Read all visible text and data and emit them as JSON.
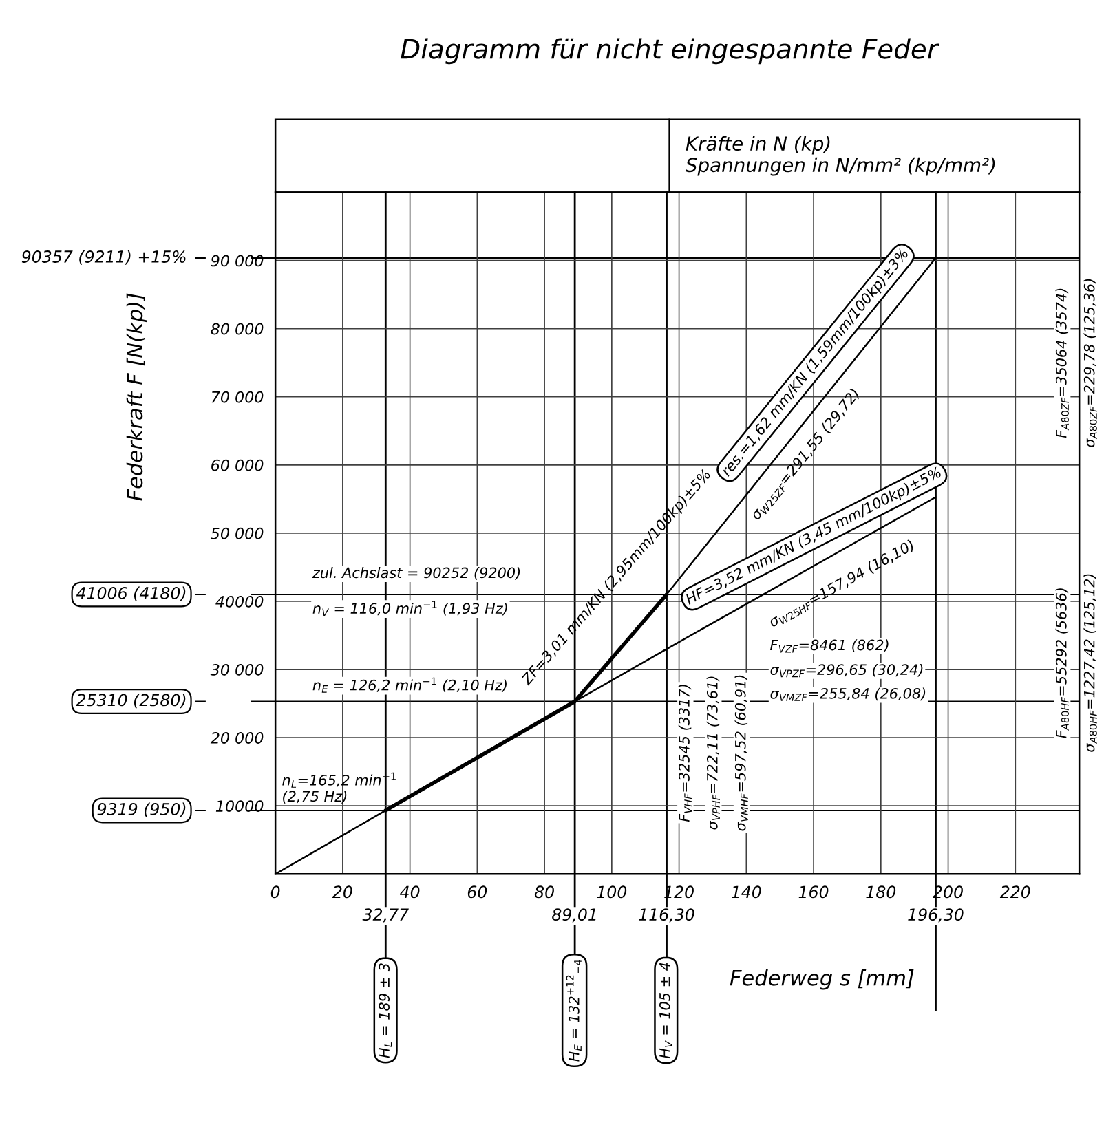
{
  "chart_data": {
    "type": "line",
    "title": "Diagramm für nicht eingespannte Feder",
    "subtitle": "Kräfte in N (kp)\nSpannungen in N/mm² (kp/mm²)",
    "xlabel": "Federweg s [mm]",
    "ylabel": "Federkraft F [N(kp)]",
    "xlim": [
      0,
      239
    ],
    "ylim": [
      0,
      100000
    ],
    "xticks": [
      0,
      20,
      40,
      60,
      80,
      100,
      120,
      140,
      160,
      180,
      200,
      220
    ],
    "yticks": [
      {
        "value": 10000,
        "label": "10000"
      },
      {
        "value": 20000,
        "label": "20 000"
      },
      {
        "value": 30000,
        "label": "30 000"
      },
      {
        "value": 40000,
        "label": "40000"
      },
      {
        "value": 50000,
        "label": "50 000"
      },
      {
        "value": 60000,
        "label": "60 000"
      },
      {
        "value": 70000,
        "label": "70 000"
      },
      {
        "value": 80000,
        "label": "80 000"
      },
      {
        "value": 90000,
        "label": "90 000"
      }
    ],
    "grid": true,
    "series": [
      {
        "color": "#000000",
        "x": [
          0,
          32.77,
          89.01,
          116.3,
          196.3
        ],
        "values": [
          0,
          9319,
          25310,
          33000,
          55292
        ]
      },
      {
        "color": "#000000",
        "x": [
          32.77,
          89.01,
          116.3
        ],
        "values": [
          9319,
          25310,
          41006
        ]
      },
      {
        "color": "#000000",
        "x": [
          116.3,
          196.3
        ],
        "values": [
          41006,
          90357
        ]
      }
    ],
    "ref_lines": [
      {
        "axis": "y",
        "value": 90357,
        "label": "90357 (9211) +15%"
      },
      {
        "axis": "y",
        "value": 41006,
        "label": "41006 (4180)"
      },
      {
        "axis": "y",
        "value": 25310,
        "label": "25310 (2580)"
      },
      {
        "axis": "y",
        "value": 9319,
        "label": "9319 (950)"
      },
      {
        "axis": "x",
        "value": 32.77,
        "label": "32,77"
      },
      {
        "axis": "x",
        "value": 89.01,
        "label": "89,01"
      },
      {
        "axis": "x",
        "value": 116.3,
        "label": "116,30"
      },
      {
        "axis": "x",
        "value": 196.3,
        "label": "196,30"
      }
    ],
    "annotations": [
      "zul. Achslast = 90252 (9200)",
      "n$_{V}$ = 116,0 min$^{−1}$ (1,93 Hz)",
      "n$_{E}$ = 126,2 min$^{−1}$ (2,10 Hz)",
      "n$_{L}$=165,2 min$^{−1}$\n(2,75 Hz)",
      "ZF=3,01 mm/KN (2,95mm/100kp)±5%",
      "res.=1,62 mm/KN (1,59mm/100kp)±3%",
      "σ$_{W25ZF}$=291,55 (29,72)",
      "HF=3,52 mm/KN (3,45 mm/100kp)±5%",
      "σ$_{W25HF}$=157,94 (16,10)",
      "F$_{VZF}$=8461 (862)",
      "σ$_{VPZF}$=296,65 (30,24)",
      "σ$_{VMZF}$=255,84 (26,08)",
      "F$_{VHF}$=32545 (3317)",
      "σ$_{VPHF}$=722,11 (73,61)",
      "σ$_{VMHF}$=597,52 (60,91)",
      "F$_{A80ZF}$=35064 (3574)",
      "σ$_{A80ZF}$=229,78 (125,36)",
      "F$_{A80HF}$=55292 (5636)",
      "σ$_{A80HF}$=1227,42 (125,12)",
      "H$_{L}$ = 189 ± 3",
      "H$_{E}$ = 132$^{+12}$$_{−4}$",
      "H$_{V}$ = 105 ± 4"
    ]
  }
}
